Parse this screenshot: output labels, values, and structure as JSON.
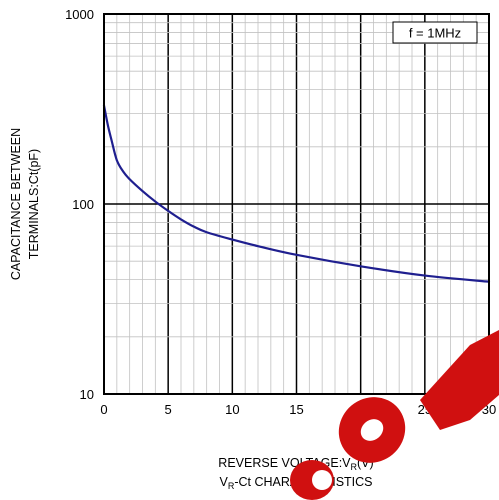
{
  "chart_data": {
    "type": "line",
    "title": "",
    "xlabel": "REVERSE VOLTAGE:V",
    "xlabel_sub": "R",
    "xlabel_unit": "(V)",
    "ylabel_line1": "CAPACITANCE BETWEEN",
    "ylabel_line2": "TERMINALS:Ct(pF)",
    "caption_prefix": "V",
    "caption_sub": "R",
    "caption_rest": "-Ct CHARACTERISTICS",
    "annotation": "f = 1MHz",
    "xlim": [
      0,
      30
    ],
    "ylim": [
      10,
      1000
    ],
    "yscale": "log",
    "grid": true,
    "x_ticks": [
      "0",
      "5",
      "10",
      "15",
      "20",
      "25",
      "30"
    ],
    "y_ticks": [
      "10",
      "100",
      "1000"
    ],
    "series_color": "#1f1f8f",
    "series": [
      {
        "x": [
          0,
          0.3,
          0.6,
          1.0,
          1.5,
          2.0,
          3.0,
          4.0,
          5.0,
          6.0,
          7.0,
          8.0,
          10.0,
          12.0,
          15.0,
          20.0,
          25.0,
          30.0
        ],
        "values": [
          330,
          260,
          215,
          170,
          148,
          135,
          117,
          103,
          92,
          83,
          76,
          71,
          65,
          60,
          54,
          47,
          42,
          39
        ]
      }
    ]
  }
}
